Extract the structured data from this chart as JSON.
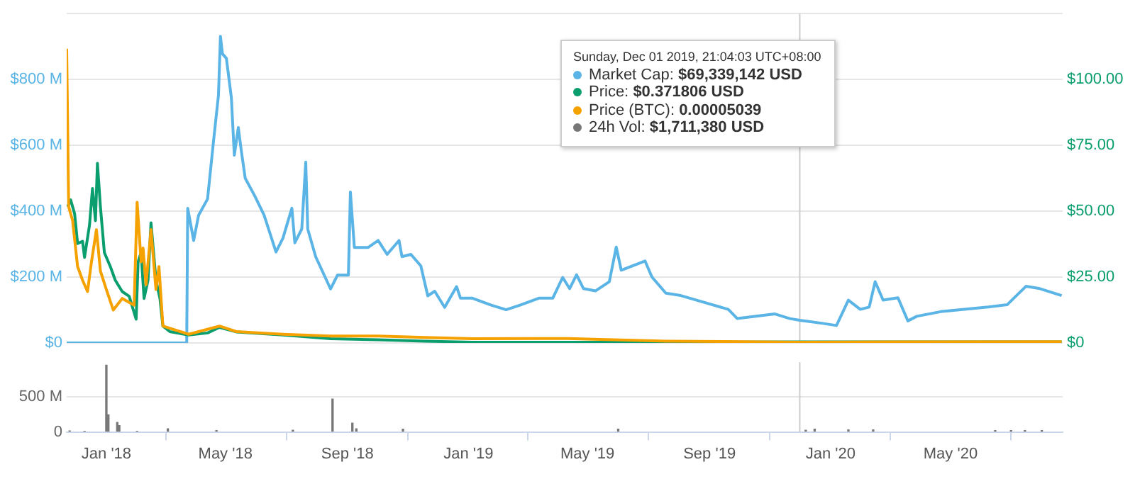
{
  "chart_data": [
    {
      "type": "line",
      "xlim": [
        "2017-11-22",
        "2020-08-22"
      ],
      "ylim": [
        0,
        1000
      ],
      "yticks": [
        {
          "value": 0,
          "label": "$0"
        },
        {
          "value": 200,
          "label": "$200 M"
        },
        {
          "value": 400,
          "label": "$400 M"
        },
        {
          "value": 600,
          "label": "$600 M"
        },
        {
          "value": 800,
          "label": "$800 M"
        },
        {
          "value": 1000,
          "label": null
        }
      ],
      "y2lim": [
        0,
        125
      ],
      "y2ticks": [
        {
          "value": 0,
          "label": "$0"
        },
        {
          "value": 25,
          "label": "$25.00"
        },
        {
          "value": 50,
          "label": "$50.00"
        },
        {
          "value": 75,
          "label": "$75.00"
        },
        {
          "value": 100,
          "label": "$100.00"
        }
      ],
      "tick_labels": "y",
      "grid": "y",
      "legend": false,
      "marker": "none",
      "ref_lines": [
        {
          "axis": "x",
          "value": "2019-12-01",
          "color": "#cccccc"
        }
      ],
      "annotations": [
        "Sunday, Dec 01 2019, 21:04:03 UTC+08:00",
        "Market Cap: $69,339,142 USD",
        "Price: $0.371806 USD",
        "Price (BTC): 0.00005039",
        "24h Vol: $1,711,380 USD"
      ],
      "series": [
        {
          "color": "#5ab4e5",
          "x": [
            "2017-11-22",
            "2018-03-23",
            "2018-03-24",
            "2018-03-30",
            "2018-04-04",
            "2018-04-13",
            "2018-04-19",
            "2018-04-24",
            "2018-04-26",
            "2018-04-28",
            "2018-05-02",
            "2018-05-07",
            "2018-05-10",
            "2018-05-14",
            "2018-05-17",
            "2018-05-21",
            "2018-05-31",
            "2018-06-09",
            "2018-06-21",
            "2018-06-28",
            "2018-07-07",
            "2018-07-10",
            "2018-07-17",
            "2018-07-21",
            "2018-07-23",
            "2018-07-31",
            "2018-08-15",
            "2018-08-22",
            "2018-09-02",
            "2018-09-04",
            "2018-09-08",
            "2018-09-22",
            "2018-10-02",
            "2018-10-11",
            "2018-10-23",
            "2018-10-26",
            "2018-11-04",
            "2018-11-14",
            "2018-11-21",
            "2018-11-28",
            "2018-12-08",
            "2018-12-20",
            "2018-12-24",
            "2019-01-05",
            "2019-01-24",
            "2019-02-08",
            "2019-02-22",
            "2019-03-13",
            "2019-03-27",
            "2019-04-06",
            "2019-04-13",
            "2019-04-20",
            "2019-04-27",
            "2019-05-09",
            "2019-05-23",
            "2019-05-30",
            "2019-06-04",
            "2019-06-16",
            "2019-06-28",
            "2019-07-05",
            "2019-07-19",
            "2019-08-03",
            "2019-08-27",
            "2019-09-20",
            "2019-09-29",
            "2019-10-18",
            "2019-11-06",
            "2019-11-21",
            "2019-12-01",
            "2019-12-23",
            "2020-01-07",
            "2020-01-19",
            "2020-01-31",
            "2020-02-09",
            "2020-02-15",
            "2020-02-23",
            "2020-03-09",
            "2020-03-19",
            "2020-03-28",
            "2020-04-21",
            "2020-05-15",
            "2020-06-08",
            "2020-06-27",
            "2020-07-16",
            "2020-07-30",
            "2020-08-21"
          ],
          "values": [
            0,
            0,
            409,
            311,
            388,
            437,
            612,
            752,
            931,
            878,
            864,
            745,
            570,
            654,
            584,
            500,
            444,
            388,
            276,
            318,
            409,
            304,
            346,
            549,
            346,
            262,
            164,
            206,
            206,
            458,
            290,
            290,
            311,
            269,
            311,
            262,
            269,
            234,
            143,
            157,
            108,
            171,
            136,
            136,
            115,
            101,
            115,
            136,
            136,
            199,
            165,
            207,
            165,
            158,
            186,
            291,
            221,
            235,
            249,
            200,
            151,
            144,
            123,
            102,
            74,
            81,
            88,
            74,
            69,
            60,
            53,
            130,
            102,
            109,
            186,
            130,
            137,
            67,
            81,
            95,
            102,
            109,
            116,
            172,
            165,
            144
          ]
        },
        {
          "axis": "y2",
          "color": "#0a9d6e",
          "x": [
            "2017-11-23",
            "2017-11-26",
            "2017-11-30",
            "2017-12-03",
            "2017-12-08",
            "2017-12-10",
            "2017-12-15",
            "2017-12-18",
            "2017-12-21",
            "2017-12-23",
            "2017-12-26",
            "2017-12-30",
            "2018-01-05",
            "2018-01-10",
            "2018-01-17",
            "2018-01-24",
            "2018-01-31",
            "2018-02-02",
            "2018-02-05",
            "2018-02-08",
            "2018-02-12",
            "2018-02-15",
            "2018-02-20",
            "2018-02-24",
            "2018-02-27",
            "2018-03-06",
            "2018-03-25",
            "2018-04-13",
            "2018-04-25",
            "2018-05-12",
            "2018-06-28",
            "2018-08-15",
            "2018-10-02",
            "2018-11-18",
            "2019-01-05",
            "2019-04-11",
            "2019-07-19",
            "2019-12-01",
            "2020-08-21"
          ],
          "values": [
            51.7,
            54.3,
            49,
            37.7,
            38.6,
            32.5,
            44.7,
            58.6,
            46.4,
            68.2,
            51.7,
            34.3,
            29,
            23.8,
            19.5,
            17.7,
            9,
            30.8,
            34.3,
            16.9,
            23.8,
            45.6,
            23.8,
            16.9,
            6.4,
            4.3,
            3,
            3.8,
            5.9,
            4.2,
            3,
            1.6,
            1.2,
            0.7,
            0.3,
            0.3,
            0.3,
            0.4,
            0.4
          ]
        },
        {
          "axis": "y2",
          "color": "#f5a100",
          "x": [
            "2017-11-22",
            "2017-11-24",
            "2017-11-28",
            "2017-12-03",
            "2017-12-08",
            "2017-12-13",
            "2017-12-17",
            "2017-12-22",
            "2017-12-26",
            "2018-01-01",
            "2018-01-08",
            "2018-01-17",
            "2018-01-29",
            "2018-02-01",
            "2018-02-05",
            "2018-02-07",
            "2018-02-10",
            "2018-02-15",
            "2018-02-20",
            "2018-02-23",
            "2018-02-27",
            "2018-03-25",
            "2018-04-25",
            "2018-05-12",
            "2018-06-28",
            "2018-08-15",
            "2018-10-02",
            "2018-11-18",
            "2019-01-05",
            "2019-04-11",
            "2019-07-19",
            "2019-12-01",
            "2020-08-21"
          ],
          "values": [
            111.7,
            51.7,
            46.4,
            29,
            23.8,
            19.5,
            30.8,
            43,
            27.3,
            20.3,
            12.5,
            16.9,
            14.3,
            53.4,
            30.8,
            36,
            22.1,
            43,
            20.3,
            29,
            6.4,
            3.3,
            6.4,
            4.3,
            3.3,
            2.6,
            2.6,
            2.1,
            1.6,
            1.7,
            0.7,
            0.3,
            0.5
          ]
        }
      ]
    },
    {
      "type": "bar",
      "xlim": [
        "2017-11-22",
        "2020-08-22"
      ],
      "ylim": [
        0,
        1000
      ],
      "yticks": [
        0,
        {
          "value": 500,
          "label": "500 M"
        }
      ],
      "xticks": [
        {
          "value": "2018-01-01",
          "label": "Jan '18"
        },
        {
          "value": "2018-05-01",
          "label": "May '18"
        },
        {
          "value": "2018-09-01",
          "label": "Sep '18"
        },
        {
          "value": "2019-01-01",
          "label": "Jan '19"
        },
        {
          "value": "2019-05-01",
          "label": "May '19"
        },
        {
          "value": "2019-09-01",
          "label": "Sep '19"
        },
        {
          "value": "2020-01-01",
          "label": "Jan '20"
        },
        {
          "value": "2020-05-01",
          "label": "May '20"
        }
      ],
      "grid": "y",
      "legend": false,
      "ref_lines": [
        {
          "axis": "x",
          "value": "2019-12-01",
          "color": "#cccccc"
        }
      ],
      "series": [
        {
          "color": "#777777",
          "x": [
            "2017-11-25",
            "2017-12-10",
            "2018-01-01",
            "2018-01-03",
            "2018-01-12",
            "2018-01-14",
            "2018-02-01",
            "2018-03-04",
            "2018-04-22",
            "2018-07-08",
            "2018-08-17",
            "2018-09-06",
            "2018-09-10",
            "2018-10-27",
            "2019-06-01",
            "2019-12-07",
            "2019-12-16",
            "2020-01-19",
            "2020-02-13",
            "2020-06-15",
            "2020-07-01",
            "2020-07-15",
            "2020-08-01"
          ],
          "values": [
            15,
            10,
            957,
            245,
            136,
            90,
            10,
            45,
            20,
            25,
            473,
            127,
            45,
            40,
            40,
            25,
            40,
            30,
            30,
            20,
            20,
            20,
            20
          ]
        }
      ]
    }
  ]
}
